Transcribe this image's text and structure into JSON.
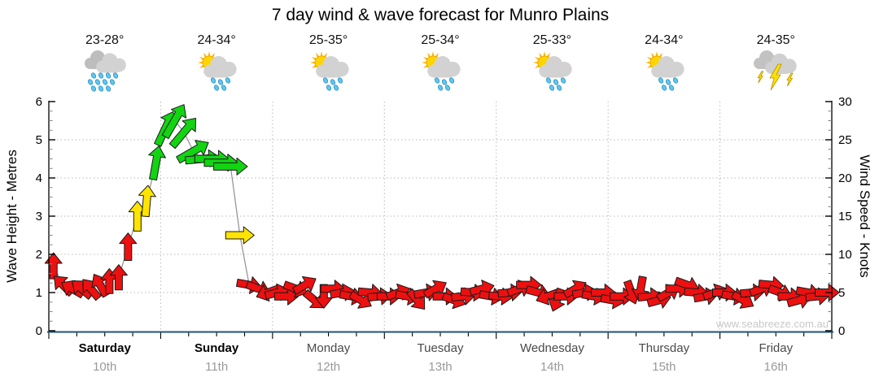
{
  "title": "7 day wind & wave forecast for Munro Plains",
  "watermark": "www.seabreeze.com.au",
  "axes": {
    "left": {
      "label": "Wave Height - Metres",
      "ticks": [
        0,
        1,
        2,
        3,
        4,
        5,
        6
      ],
      "range": [
        0,
        6
      ]
    },
    "right": {
      "label": "Wind Speed - Knots",
      "ticks": [
        0,
        5,
        10,
        15,
        20,
        25,
        30
      ],
      "range": [
        0,
        30
      ]
    }
  },
  "days": [
    {
      "name": "Saturday",
      "date": "10th",
      "temp": "23-28°",
      "icon": "rain",
      "bold": true
    },
    {
      "name": "Sunday",
      "date": "11th",
      "temp": "24-34°",
      "icon": "sun-showers",
      "bold": true
    },
    {
      "name": "Monday",
      "date": "12th",
      "temp": "25-35°",
      "icon": "sun-showers",
      "bold": false
    },
    {
      "name": "Tuesday",
      "date": "13th",
      "temp": "25-34°",
      "icon": "sun-showers",
      "bold": false
    },
    {
      "name": "Wednesday",
      "date": "14th",
      "temp": "25-33°",
      "icon": "sun-showers",
      "bold": false
    },
    {
      "name": "Thursday",
      "date": "15th",
      "temp": "24-34°",
      "icon": "sun-showers",
      "bold": false
    },
    {
      "name": "Friday",
      "date": "16th",
      "temp": "24-35°",
      "icon": "storm",
      "bold": false
    }
  ],
  "chart_data": {
    "type": "line",
    "title": "7 day wind & wave forecast for Munro Plains",
    "x_days": [
      "Saturday 10th",
      "Sunday 11th",
      "Monday 12th",
      "Tuesday 13th",
      "Wednesday 14th",
      "Thursday 15th",
      "Friday 16th"
    ],
    "points_per_day": 12,
    "y_left": {
      "label": "Wave Height - Metres",
      "range": [
        0,
        6
      ]
    },
    "y_right": {
      "label": "Wind Speed - Knots",
      "range": [
        0,
        30
      ]
    },
    "note": "Single forecast line (grey) with wind arrows; arrow colour = wind strength; shared scale 1 m = 5 kt; arrows point toward wind direction (0deg = up/N).",
    "series": [
      {
        "name": "Wind Speed",
        "unit": "knots",
        "values": [
          8.5,
          6,
          5.5,
          5.5,
          5.5,
          6,
          6.5,
          7,
          11,
          15,
          17,
          22,
          26.5,
          27.5,
          26,
          23.5,
          22.5,
          22.5,
          22,
          21.5,
          12.5,
          6,
          5.5,
          5,
          5,
          4.5,
          5.5,
          6,
          4,
          4.5,
          5.5,
          5,
          4.5,
          4,
          5,
          4.5,
          4.5,
          5,
          4.5,
          4,
          5,
          5.5,
          4.5,
          4,
          4.5,
          5,
          5.5,
          4.5,
          4.5,
          5,
          5.5,
          6,
          5,
          4.5,
          4,
          4.5,
          5.5,
          5,
          4.5,
          5,
          4,
          4.5,
          5,
          5.5,
          4.5,
          4,
          5,
          5.5,
          6,
          5,
          4.5,
          5,
          5,
          4.5,
          4,
          5,
          5.5,
          6,
          5,
          4.5,
          4,
          5,
          4.5,
          5
        ]
      },
      {
        "name": "Wind Direction",
        "unit": "degrees",
        "values": [
          0,
          315,
          300,
          310,
          320,
          330,
          0,
          0,
          0,
          0,
          5,
          10,
          25,
          30,
          40,
          60,
          85,
          90,
          90,
          90,
          90,
          100,
          110,
          250,
          75,
          90,
          110,
          60,
          130,
          180,
          90,
          80,
          100,
          120,
          95,
          85,
          90,
          70,
          100,
          140,
          80,
          60,
          90,
          110,
          85,
          95,
          75,
          100,
          95,
          85,
          70,
          90,
          105,
          250,
          200,
          90,
          60,
          80,
          100,
          90,
          100,
          90,
          160,
          190,
          85,
          75,
          60,
          90,
          110,
          95,
          80,
          70,
          90,
          100,
          120,
          85,
          70,
          95,
          110,
          90,
          75,
          100,
          85,
          90
        ]
      }
    ],
    "arrow_colors": {
      "light": "#ec1010",
      "moderate": "#ffe400",
      "fresh": "#12d412"
    },
    "color_thresholds_knots": {
      "moderate_min": 12,
      "fresh_min": 19
    },
    "line_color": "#909090",
    "grid": {
      "h_lines_knots": [
        5,
        10,
        15,
        20,
        25
      ],
      "v_lines": "day-boundaries",
      "style": "dotted"
    },
    "bottom_axis_color": "#23527c",
    "legend_position": "none"
  }
}
